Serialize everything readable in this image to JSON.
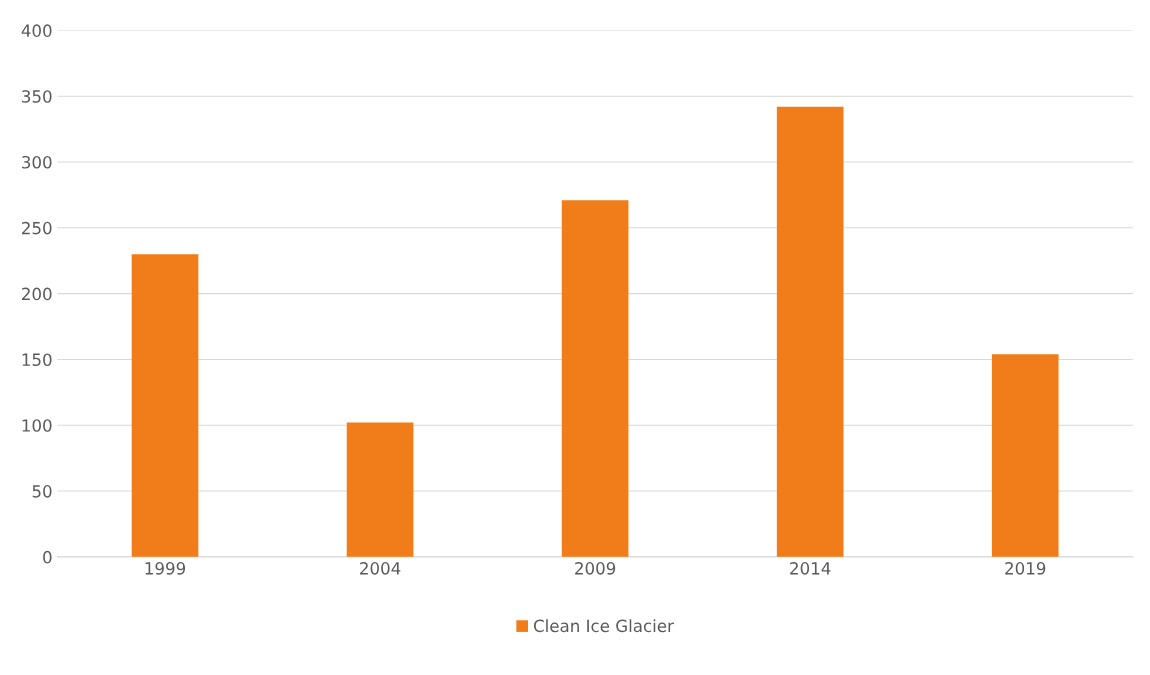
{
  "chart_data": {
    "type": "bar",
    "categories": [
      "1999",
      "2004",
      "2009",
      "2014",
      "2019"
    ],
    "series": [
      {
        "name": "Clean Ice Glacier",
        "color": "#f07d19",
        "values": [
          230,
          102,
          271,
          342,
          154
        ]
      }
    ],
    "ylim": [
      0,
      400
    ],
    "yticks": [
      0,
      50,
      100,
      150,
      200,
      250,
      300,
      350,
      400
    ],
    "grid": "y",
    "legend": "bottom"
  }
}
